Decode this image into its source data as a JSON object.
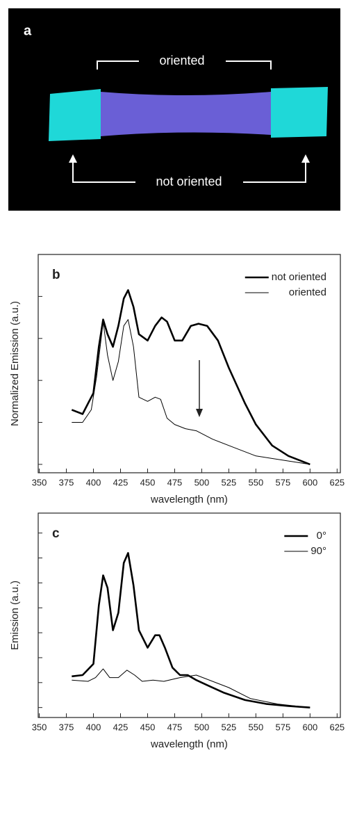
{
  "photo": {
    "label": "a",
    "top_text": "oriented",
    "bottom_text": "not oriented"
  },
  "chart_data": [
    {
      "type": "line",
      "panel_label": "b",
      "xlabel": "wavelength (nm)",
      "ylabel": "Normalized Emission (a.u.)",
      "xlim": [
        349,
        628
      ],
      "xticks": [
        350,
        375,
        400,
        425,
        450,
        475,
        500,
        525,
        550,
        575,
        600,
        625
      ],
      "ylim": [
        -0.04,
        1.0
      ],
      "yticks": [
        0,
        0.2,
        0.4,
        0.6,
        0.8
      ],
      "legend": "upper right",
      "series": [
        {
          "name": "not oriented",
          "color": "#000000",
          "width": 2.6,
          "x": [
            380,
            390,
            400,
            405,
            409,
            413,
            418,
            423,
            428,
            432,
            437,
            442,
            450,
            457,
            463,
            468,
            475,
            482,
            490,
            497,
            505,
            515,
            525,
            540,
            550,
            565,
            580,
            600
          ],
          "values": [
            0.26,
            0.24,
            0.34,
            0.56,
            0.69,
            0.62,
            0.56,
            0.66,
            0.79,
            0.83,
            0.75,
            0.62,
            0.59,
            0.66,
            0.7,
            0.68,
            0.59,
            0.59,
            0.66,
            0.67,
            0.66,
            0.59,
            0.46,
            0.29,
            0.19,
            0.09,
            0.04,
            0.0
          ]
        },
        {
          "name": "oriented",
          "color": "#000000",
          "width": 1,
          "x": [
            380,
            390,
            398,
            403,
            409,
            413,
            418,
            423,
            428,
            432,
            437,
            442,
            450,
            457,
            462,
            468,
            475,
            485,
            495,
            510,
            530,
            550,
            575,
            600
          ],
          "values": [
            0.2,
            0.2,
            0.26,
            0.42,
            0.68,
            0.52,
            0.4,
            0.49,
            0.66,
            0.69,
            0.56,
            0.32,
            0.3,
            0.32,
            0.31,
            0.22,
            0.19,
            0.17,
            0.16,
            0.12,
            0.08,
            0.04,
            0.02,
            0.0
          ]
        }
      ]
    },
    {
      "type": "line",
      "panel_label": "c",
      "xlabel": "wavelength (nm)",
      "ylabel": "Emission (a.u.)",
      "xlim": [
        349,
        628
      ],
      "xticks": [
        350,
        375,
        400,
        425,
        450,
        475,
        500,
        525,
        550,
        575,
        600,
        625
      ],
      "ylim": [
        -0.04,
        0.78
      ],
      "yticks": [
        0,
        0.1,
        0.2,
        0.3,
        0.4,
        0.5,
        0.6,
        0.7
      ],
      "legend": "upper right",
      "series": [
        {
          "name": "0°",
          "color": "#000000",
          "width": 2.6,
          "x": [
            380,
            390,
            400,
            405,
            409,
            413,
            418,
            423,
            428,
            432,
            437,
            442,
            450,
            457,
            461,
            466,
            473,
            480,
            487,
            495,
            505,
            520,
            540,
            560,
            580,
            600
          ],
          "values": [
            0.125,
            0.13,
            0.175,
            0.41,
            0.53,
            0.48,
            0.31,
            0.38,
            0.58,
            0.62,
            0.49,
            0.31,
            0.24,
            0.29,
            0.29,
            0.24,
            0.16,
            0.13,
            0.13,
            0.11,
            0.09,
            0.06,
            0.03,
            0.014,
            0.006,
            0.0
          ]
        },
        {
          "name": "90°",
          "color": "#000000",
          "width": 1,
          "x": [
            380,
            395,
            402,
            409,
            415,
            423,
            431,
            438,
            445,
            455,
            465,
            480,
            495,
            510,
            525,
            545,
            570,
            600
          ],
          "values": [
            0.11,
            0.105,
            0.12,
            0.155,
            0.12,
            0.12,
            0.15,
            0.13,
            0.105,
            0.11,
            0.105,
            0.12,
            0.13,
            0.105,
            0.08,
            0.036,
            0.014,
            0.0
          ]
        }
      ]
    }
  ]
}
